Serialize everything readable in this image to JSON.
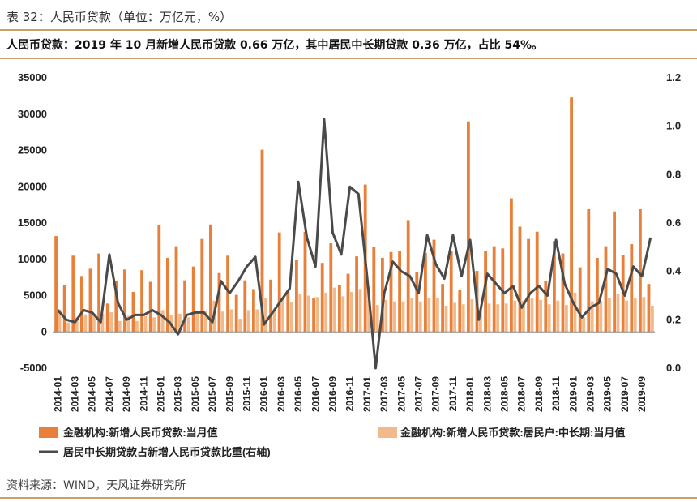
{
  "header": {
    "title": "表 32：人民币贷款（单位：万亿元，%）",
    "summary": "人民币贷款：2019 年 10 月新增人民币贷款 0.66 万亿，其中居民中长期贷款 0.36 万亿，占比 54%。"
  },
  "footer": {
    "source": "资料来源：WIND，天风证券研究所"
  },
  "colors": {
    "bar_total": "#e8803a",
    "bar_household": "#f2b98a",
    "line_ratio": "#4a4a4a",
    "rule": "#c8a06a"
  },
  "chart_data": {
    "type": "bar",
    "categories": [
      "2014-01",
      "2014-02",
      "2014-03",
      "2014-04",
      "2014-05",
      "2014-06",
      "2014-07",
      "2014-08",
      "2014-09",
      "2014-10",
      "2014-11",
      "2014-12",
      "2015-01",
      "2015-02",
      "2015-03",
      "2015-04",
      "2015-05",
      "2015-06",
      "2015-07",
      "2015-08",
      "2015-09",
      "2015-10",
      "2015-11",
      "2015-12",
      "2016-01",
      "2016-02",
      "2016-03",
      "2016-04",
      "2016-05",
      "2016-06",
      "2016-07",
      "2016-08",
      "2016-09",
      "2016-10",
      "2016-11",
      "2016-12",
      "2017-01",
      "2017-02",
      "2017-03",
      "2017-04",
      "2017-05",
      "2017-06",
      "2017-07",
      "2017-08",
      "2017-09",
      "2017-10",
      "2017-11",
      "2017-12",
      "2018-01",
      "2018-02",
      "2018-03",
      "2018-04",
      "2018-05",
      "2018-06",
      "2018-07",
      "2018-08",
      "2018-09",
      "2018-10",
      "2018-11",
      "2018-12",
      "2019-01",
      "2019-02",
      "2019-03",
      "2019-04",
      "2019-05",
      "2019-06",
      "2019-07",
      "2019-08",
      "2019-09",
      "2019-10"
    ],
    "x_tick_labels": [
      "2014-01",
      "2014-03",
      "2014-05",
      "2014-07",
      "2014-09",
      "2014-11",
      "2015-01",
      "2015-03",
      "2015-05",
      "2015-07",
      "2015-09",
      "2015-11",
      "2016-01",
      "2016-03",
      "2016-05",
      "2016-07",
      "2016-09",
      "2016-11",
      "2017-01",
      "2017-03",
      "2017-05",
      "2017-07",
      "2017-09",
      "2017-11",
      "2018-01",
      "2018-03",
      "2018-05",
      "2018-07",
      "2018-09",
      "2018-11",
      "2019-01",
      "2019-03",
      "2019-05",
      "2019-07",
      "2019-09"
    ],
    "series": [
      {
        "name": "金融机构:新增人民币贷款:当月值",
        "kind": "bar",
        "axis": "left",
        "values": [
          13200,
          6400,
          10500,
          7700,
          8700,
          10800,
          3900,
          7000,
          8600,
          5500,
          8500,
          6900,
          14700,
          10200,
          11800,
          7100,
          9000,
          12800,
          14800,
          8100,
          10500,
          5100,
          7100,
          5900,
          25100,
          7200,
          13700,
          5600,
          9900,
          13800,
          4600,
          9500,
          12200,
          6500,
          8000,
          10400,
          20300,
          11700,
          10200,
          11000,
          11100,
          15400,
          8300,
          10900,
          12700,
          6600,
          11200,
          5800,
          29000,
          8400,
          11200,
          11800,
          11500,
          18400,
          14500,
          12800,
          13800,
          7000,
          12500,
          10800,
          32300,
          8900,
          16900,
          10200,
          11800,
          16600,
          10600,
          12100,
          16900,
          6600
        ]
      },
      {
        "name": "金融机构:新增人民币贷款:居民户:中长期:当月值",
        "kind": "bar",
        "axis": "left",
        "values": [
          3100,
          1300,
          2000,
          2400,
          2500,
          2500,
          2700,
          1500,
          2200,
          1500,
          2200,
          2000,
          3000,
          2300,
          2500,
          2000,
          2600,
          2900,
          4300,
          2800,
          3100,
          1800,
          3000,
          3100,
          4600,
          3000,
          4700,
          4100,
          5200,
          5000,
          4800,
          5400,
          6100,
          4900,
          5500,
          5900,
          6200,
          3700,
          4400,
          4200,
          4200,
          4600,
          4200,
          4700,
          4700,
          3600,
          4000,
          3800,
          4500,
          3000,
          3900,
          3800,
          3900,
          4300,
          4300,
          4600,
          4400,
          3800,
          4300,
          3700,
          5400,
          2000,
          4200,
          4200,
          4700,
          5200,
          4300,
          4600,
          4800,
          3600
        ]
      },
      {
        "name": "居民中长期贷款占新增人民币贷款比重(右轴)",
        "kind": "line",
        "axis": "right",
        "values": [
          0.24,
          0.2,
          0.19,
          0.24,
          0.23,
          0.19,
          0.47,
          0.27,
          0.2,
          0.22,
          0.22,
          0.24,
          0.22,
          0.19,
          0.14,
          0.22,
          0.23,
          0.23,
          0.19,
          0.36,
          0.31,
          0.36,
          0.42,
          0.46,
          0.18,
          0.23,
          0.28,
          0.33,
          0.77,
          0.54,
          0.42,
          1.03,
          0.56,
          0.47,
          0.75,
          0.72,
          0.38,
          0.0,
          0.31,
          0.44,
          0.4,
          0.38,
          0.31,
          0.55,
          0.43,
          0.37,
          0.55,
          0.38,
          0.53,
          0.2,
          0.39,
          0.35,
          0.31,
          0.34,
          0.25,
          0.31,
          0.34,
          0.3,
          0.53,
          0.35,
          0.27,
          0.21,
          0.25,
          0.27,
          0.41,
          0.39,
          0.3,
          0.42,
          0.38,
          0.54
        ]
      }
    ],
    "y_left": {
      "min": -5000,
      "max": 35000,
      "ticks": [
        -5000,
        0,
        5000,
        10000,
        15000,
        20000,
        25000,
        30000,
        35000
      ]
    },
    "y_right": {
      "min": 0.0,
      "max": 1.2,
      "ticks": [
        "0.0",
        "0.2",
        "0.4",
        "0.6",
        "0.8",
        "1.0",
        "1.2"
      ]
    },
    "legend": [
      {
        "label": "金融机构:新增人民币贷款:当月值",
        "type": "bar"
      },
      {
        "label": "金融机构:新增人民币贷款:居民户:中长期:当月值",
        "type": "bar-light"
      },
      {
        "label": "居民中长期贷款占新增人民币贷款比重(右轴)",
        "type": "line"
      }
    ],
    "grid": false,
    "legend_position": "bottom"
  }
}
